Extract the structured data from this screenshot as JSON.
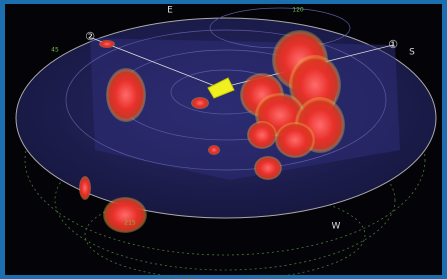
{
  "compass": {
    "east": "E",
    "south": "S",
    "west": "W"
  },
  "range_labels": [
    "120",
    "45",
    "215"
  ],
  "markers": [
    "②",
    "①"
  ]
}
